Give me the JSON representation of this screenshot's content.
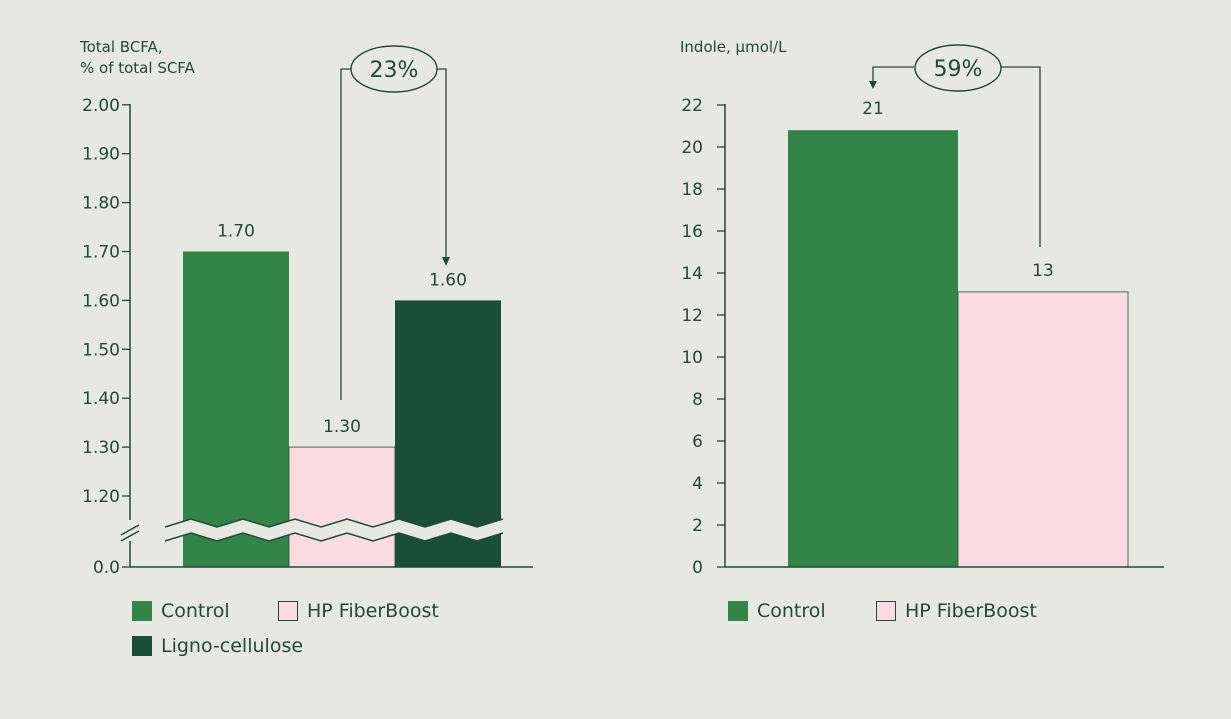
{
  "colors": {
    "control": "#338447",
    "fiberboost": "#fadbe2",
    "lignocellulose": "#1a4e36",
    "text": "#1f4b38",
    "background": "#e6e8e1"
  },
  "chart_data": [
    {
      "type": "bar",
      "ylabel": "Total BCFA,\n% of total SCFA",
      "categories": [
        "Control",
        "HP FiberBoost",
        "Ligno-cellulose"
      ],
      "values": [
        1.7,
        1.3,
        1.6
      ],
      "value_labels": [
        "1.70",
        "1.30",
        "1.60"
      ],
      "yticks": [
        "0.0",
        "1.20",
        "1.30",
        "1.40",
        "1.50",
        "1.60",
        "1.70",
        "1.80",
        "1.90",
        "2.00"
      ],
      "ylim": [
        1.15,
        2.0
      ],
      "axis_break": true,
      "annotation": {
        "label": "23%",
        "from": "HP FiberBoost",
        "to": "Ligno-cellulose"
      },
      "legend": [
        {
          "name": "Control",
          "color": "#338447"
        },
        {
          "name": "HP FiberBoost",
          "color": "#fadbe2"
        },
        {
          "name": "Ligno-cellulose",
          "color": "#1a4e36"
        }
      ]
    },
    {
      "type": "bar",
      "ylabel": "Indole, µmol/L",
      "categories": [
        "Control",
        "HP FiberBoost"
      ],
      "values": [
        20.8,
        13.1
      ],
      "value_labels": [
        "21",
        "13"
      ],
      "yticks": [
        "0",
        "2",
        "4",
        "6",
        "8",
        "10",
        "12",
        "14",
        "16",
        "18",
        "20",
        "22"
      ],
      "ylim": [
        0,
        22
      ],
      "annotation": {
        "label": "59%",
        "from": "HP FiberBoost",
        "to": "Control"
      },
      "legend": [
        {
          "name": "Control",
          "color": "#338447"
        },
        {
          "name": "HP FiberBoost",
          "color": "#fadbe2"
        }
      ]
    }
  ]
}
